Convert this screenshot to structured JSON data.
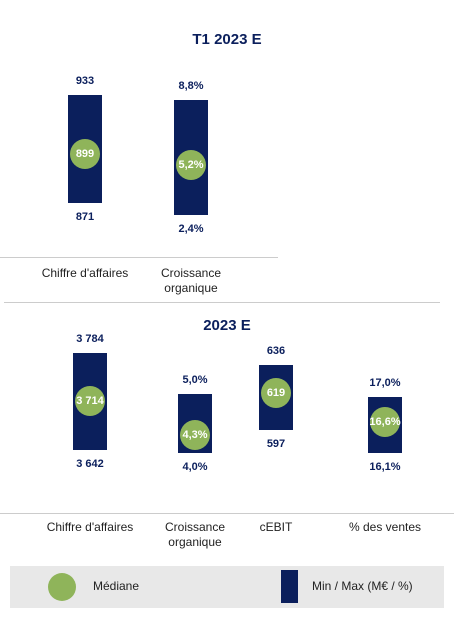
{
  "chart_data": [
    {
      "type": "range",
      "title": "T1 2023 E",
      "categories": [
        "Chiffre d'affaires",
        "Croissance\norganique"
      ],
      "points": [
        {
          "category": "Chiffre d'affaires",
          "min": 871,
          "max": 933,
          "median": 899,
          "min_label": "871",
          "max_label": "933",
          "median_label": "899"
        },
        {
          "category": "Croissance organique",
          "min": 2.4,
          "max": 8.8,
          "median": 5.2,
          "min_label": "2,4%",
          "max_label": "8,8%",
          "median_label": "5,2%"
        }
      ]
    },
    {
      "type": "range",
      "title": "2023 E",
      "categories": [
        "Chiffre d'affaires",
        "Croissance\norganique",
        "cEBIT",
        "% des ventes"
      ],
      "points": [
        {
          "category": "Chiffre d'affaires",
          "min": 3642,
          "max": 3784,
          "median": 3714,
          "min_label": "3 642",
          "max_label": "3 784",
          "median_label": "3 714"
        },
        {
          "category": "Croissance organique",
          "min": 4.0,
          "max": 5.0,
          "median": 4.3,
          "min_label": "4,0%",
          "max_label": "5,0%",
          "median_label": "4,3%"
        },
        {
          "category": "cEBIT",
          "min": 597,
          "max": 636,
          "median": 619,
          "min_label": "597",
          "max_label": "636",
          "median_label": "619"
        },
        {
          "category": "% des ventes",
          "min": 16.1,
          "max": 17.0,
          "median": 16.6,
          "min_label": "16,1%",
          "max_label": "17,0%",
          "median_label": "16,6%"
        }
      ]
    }
  ],
  "legend": {
    "median_label": "Médiane",
    "range_label": "Min / Max (M€ / %)"
  },
  "colors": {
    "bar": "#0b1f5c",
    "median": "#8fb45a",
    "text": "#0b1f5c"
  }
}
